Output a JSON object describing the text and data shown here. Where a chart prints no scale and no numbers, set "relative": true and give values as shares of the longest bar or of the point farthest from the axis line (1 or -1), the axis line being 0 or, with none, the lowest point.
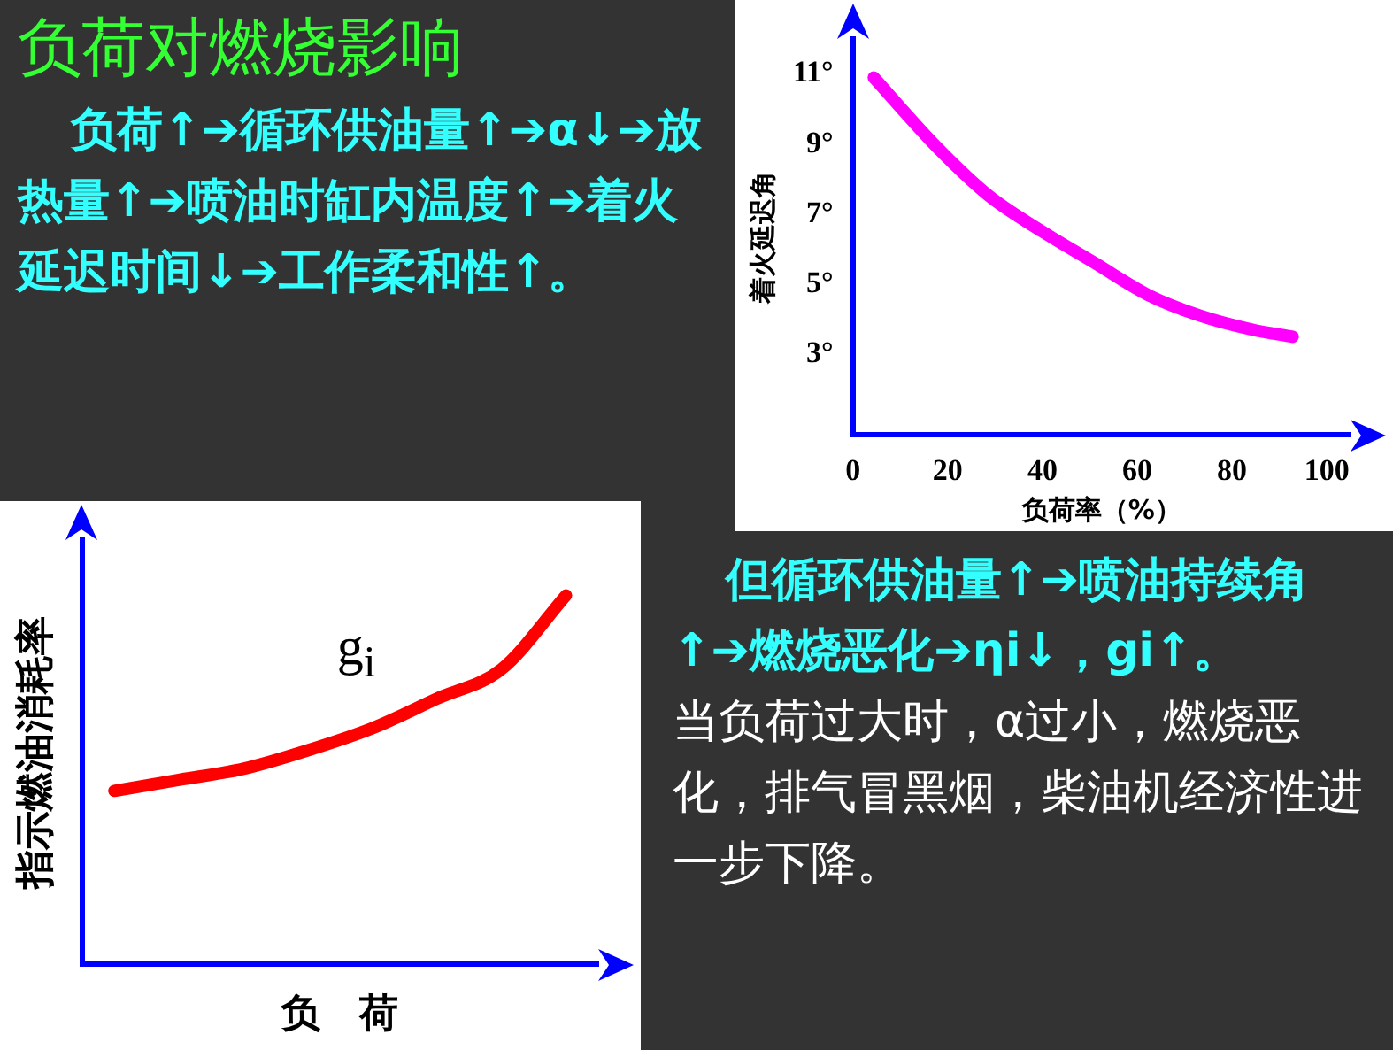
{
  "chart_data": [
    {
      "type": "other",
      "title": "负荷对燃烧影响",
      "annotations": [
        "负荷↑➔循环供油量↑➔α↓➔放热量↑➔喷油时缸内温度↑➔着火延迟时间↓➔工作柔和性↑。"
      ]
    },
    {
      "type": "line",
      "xlabel": "负荷率（%）",
      "ylabel": "着火延迟角",
      "x": [
        4.4,
        17.8,
        28.9,
        40,
        51.1,
        62.2,
        73.3,
        84.4,
        92.8
      ],
      "series": [
        {
          "color": "#ff00ff",
          "values": [
            10.9,
            8.9,
            7.5,
            6.5,
            5.6,
            4.7,
            4.1,
            3.7,
            3.5
          ]
        }
      ],
      "xlim": [
        0,
        105
      ],
      "ylim": [
        0.7,
        12
      ],
      "xticks": [
        0,
        20,
        40,
        60,
        80,
        100
      ],
      "yticks": [
        {
          "value": 3,
          "label": "3°"
        },
        {
          "value": 5,
          "label": "5°"
        },
        {
          "value": 7,
          "label": "7°"
        },
        {
          "value": 9,
          "label": "9°"
        },
        {
          "value": 11,
          "label": "11°"
        }
      ],
      "marker": "none"
    },
    {
      "type": "line",
      "relative": true,
      "xlabel": "负　荷",
      "ylabel": "指示燃油消耗率",
      "categories": [
        null,
        null,
        null,
        null,
        null,
        null,
        null,
        null
      ],
      "series": [
        {
          "name": "g$_{i}$",
          "color": "#ff0000",
          "values": [
            0.47,
            0.5,
            0.53,
            0.58,
            0.64,
            0.72,
            0.8,
            1
          ]
        }
      ],
      "marker": "none",
      "tick_labels": false
    },
    {
      "type": "other",
      "annotations": [
        "但循环供油量↑➔喷油持续角↑➔燃烧恶化➔ηi↓，gi↑。",
        "当负荷过大时，α过小，燃烧恶化，排气冒黑烟，柴油机经济性进一步下降。"
      ]
    }
  ]
}
